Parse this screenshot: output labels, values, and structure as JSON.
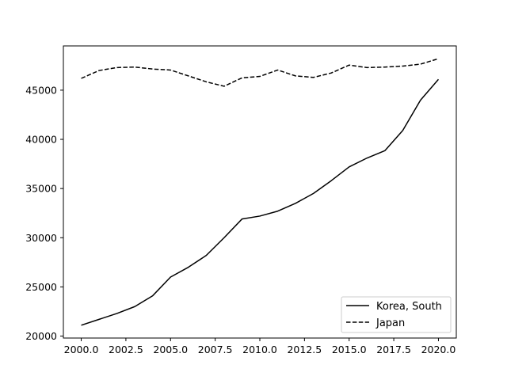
{
  "chart_data": {
    "type": "line",
    "title": "",
    "xlabel": "",
    "ylabel": "",
    "xlim": [
      1999.0,
      2021.0
    ],
    "ylim": [
      19800,
      49500
    ],
    "grid": false,
    "legend_position": "bottom-right",
    "x_ticks": [
      2000.0,
      2002.5,
      2005.0,
      2007.5,
      2010.0,
      2012.5,
      2015.0,
      2017.5,
      2020.0
    ],
    "x_tick_labels": [
      "2000.0",
      "2002.5",
      "2005.0",
      "2007.5",
      "2010.0",
      "2012.5",
      "2015.0",
      "2017.5",
      "2020.0"
    ],
    "y_ticks": [
      20000,
      25000,
      30000,
      35000,
      40000,
      45000
    ],
    "y_tick_labels": [
      "20000",
      "25000",
      "30000",
      "35000",
      "40000",
      "45000"
    ],
    "x": [
      2000,
      2001,
      2002,
      2003,
      2004,
      2005,
      2006,
      2007,
      2008,
      2009,
      2010,
      2011,
      2012,
      2013,
      2014,
      2015,
      2016,
      2017,
      2018,
      2019,
      2020
    ],
    "series": [
      {
        "name": "Korea, South",
        "style": "solid",
        "color": "#000000",
        "values": [
          21100,
          21700,
          22300,
          23000,
          24100,
          26000,
          27000,
          28200,
          30000,
          31900,
          32200,
          32700,
          33500,
          34500,
          35800,
          37200,
          38100,
          38850,
          40900,
          44000,
          46100
        ]
      },
      {
        "name": "Japan",
        "style": "dashed",
        "color": "#000000",
        "values": [
          46200,
          47000,
          47300,
          47350,
          47150,
          47050,
          46450,
          45850,
          45400,
          46250,
          46400,
          47050,
          46450,
          46300,
          46750,
          47550,
          47300,
          47350,
          47450,
          47650,
          48200
        ]
      }
    ]
  }
}
